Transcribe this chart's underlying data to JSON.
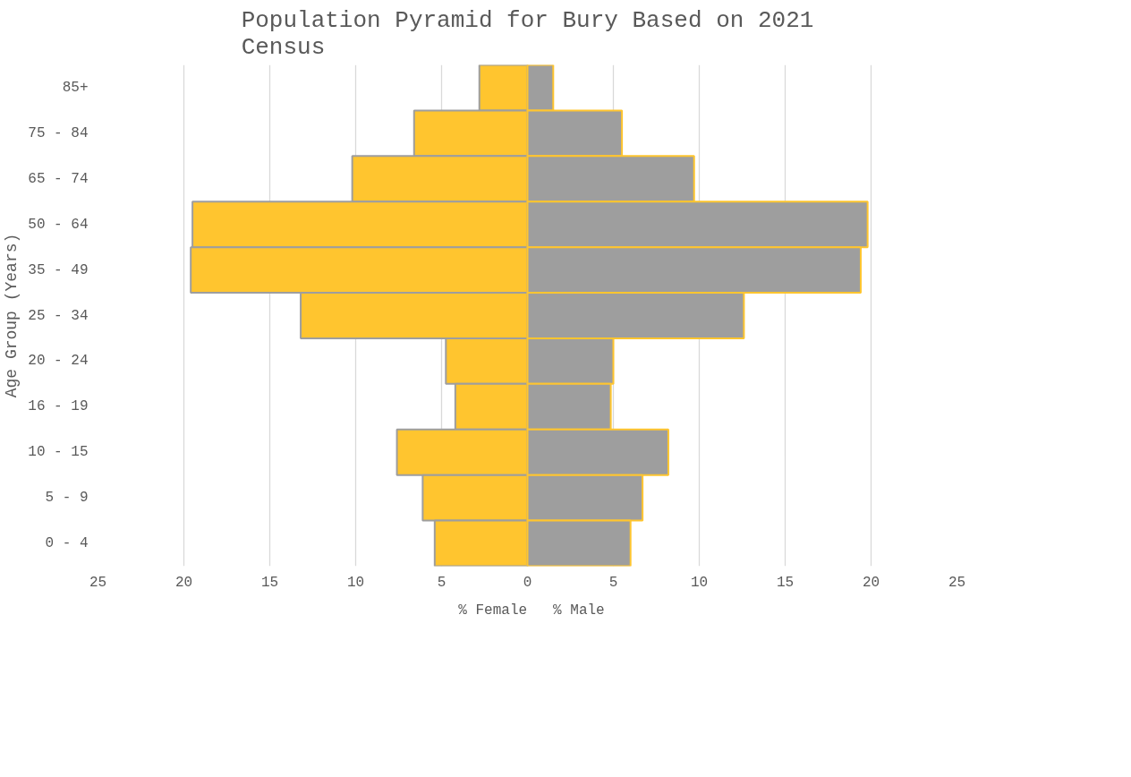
{
  "chart_data": {
    "type": "bar",
    "orientation": "horizontal",
    "title": "Population Pyramid for Bury Based on 2021 Census",
    "ylabel": "Age Group (Years)",
    "categories": [
      "85+",
      "75 - 84",
      "65 - 74",
      "50 - 64",
      "35 - 49",
      "25 - 34",
      "20 - 24",
      "16 - 19",
      "10 - 15",
      "5 - 9",
      "0 - 4"
    ],
    "series": [
      {
        "name": "% Female",
        "color": "#ffc52f",
        "values": [
          -2.8,
          -6.6,
          -10.2,
          -19.5,
          -19.6,
          -13.2,
          -4.75,
          -4.2,
          -7.6,
          -6.1,
          -5.4
        ]
      },
      {
        "name": "% Male",
        "color": "#9e9e9e",
        "values": [
          1.5,
          5.5,
          9.7,
          19.8,
          19.4,
          12.6,
          5.0,
          4.85,
          8.2,
          6.7,
          6.0
        ]
      }
    ],
    "xlim": [
      -25,
      25
    ],
    "xticks": [
      {
        "value": -25,
        "label": "25"
      },
      {
        "value": -20,
        "label": "20"
      },
      {
        "value": -15,
        "label": "15"
      },
      {
        "value": -10,
        "label": "10"
      },
      {
        "value": -5,
        "label": "5"
      },
      0,
      5,
      10,
      15,
      20,
      25
    ],
    "grid": "x",
    "legend": "bottom",
    "stacked": true
  }
}
